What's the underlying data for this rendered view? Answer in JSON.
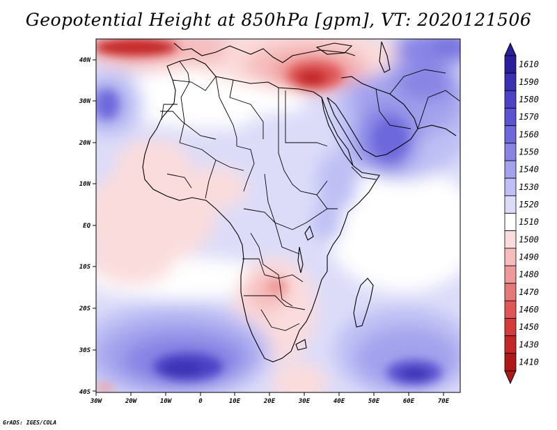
{
  "title": "Geopotential Height at 850hPa [gpm], VT: 2020121506",
  "credit": "GrADS: IGES/COLA",
  "lat_labels": [
    "40N",
    "30N",
    "20N",
    "10N",
    "EQ",
    "10S",
    "20S",
    "30S",
    "40S"
  ],
  "lon_labels": [
    "30W",
    "20W",
    "10W",
    "0",
    "10E",
    "20E",
    "30E",
    "40E",
    "50E",
    "60E",
    "70E"
  ],
  "colorbar": {
    "levels": [
      "1610",
      "1590",
      "1580",
      "1570",
      "1560",
      "1550",
      "1540",
      "1530",
      "1520",
      "1510",
      "1500",
      "1490",
      "1480",
      "1470",
      "1460",
      "1450",
      "1430",
      "1410"
    ],
    "colors": [
      "#2a1f9a",
      "#3a30b4",
      "#4b42c6",
      "#5b53d2",
      "#6d68db",
      "#8784e4",
      "#a3a2ed",
      "#bebff4",
      "#dcdcf9",
      "#ffffff",
      "#fbdcdc",
      "#f6bdbd",
      "#ef9a9a",
      "#e77878",
      "#de5656",
      "#d23c3c",
      "#c42727",
      "#b01818"
    ]
  },
  "chart_data": {
    "type": "heatmap",
    "title": "Geopotential Height at 850hPa [gpm], VT: 2020121506",
    "variable": "Geopotential Height",
    "level": "850hPa",
    "units": "gpm",
    "valid_time": "2020121506",
    "lon_range": [
      -30,
      75
    ],
    "lat_range": [
      -40,
      45
    ],
    "contour_levels": [
      1410,
      1430,
      1450,
      1460,
      1470,
      1480,
      1490,
      1500,
      1510,
      1520,
      1530,
      1540,
      1550,
      1560,
      1570,
      1580,
      1590,
      1610
    ],
    "features": [
      {
        "name": "low over Eastern Mediterranean / Middle East",
        "lon": 33,
        "lat": 33,
        "value_approx": 1430
      },
      {
        "name": "low over NW Atlantic corner",
        "lon": -20,
        "lat": 43,
        "value_approx": 1440
      },
      {
        "name": "high over South Atlantic",
        "lon": -1,
        "lat": -34,
        "value_approx": 1590
      },
      {
        "name": "high over South Indian Ocean",
        "lon": 60,
        "lat": -33,
        "value_approx": 1585
      },
      {
        "name": "high over Arabia / Iran",
        "lon": 50,
        "lat": 25,
        "value_approx": 1555
      },
      {
        "name": "high over Atlantic west of Morocco",
        "lon": -28,
        "lat": 30,
        "value_approx": 1560
      },
      {
        "name": "weak low over southern Africa interior",
        "lon": 22,
        "lat": -19,
        "value_approx": 1490
      }
    ]
  }
}
